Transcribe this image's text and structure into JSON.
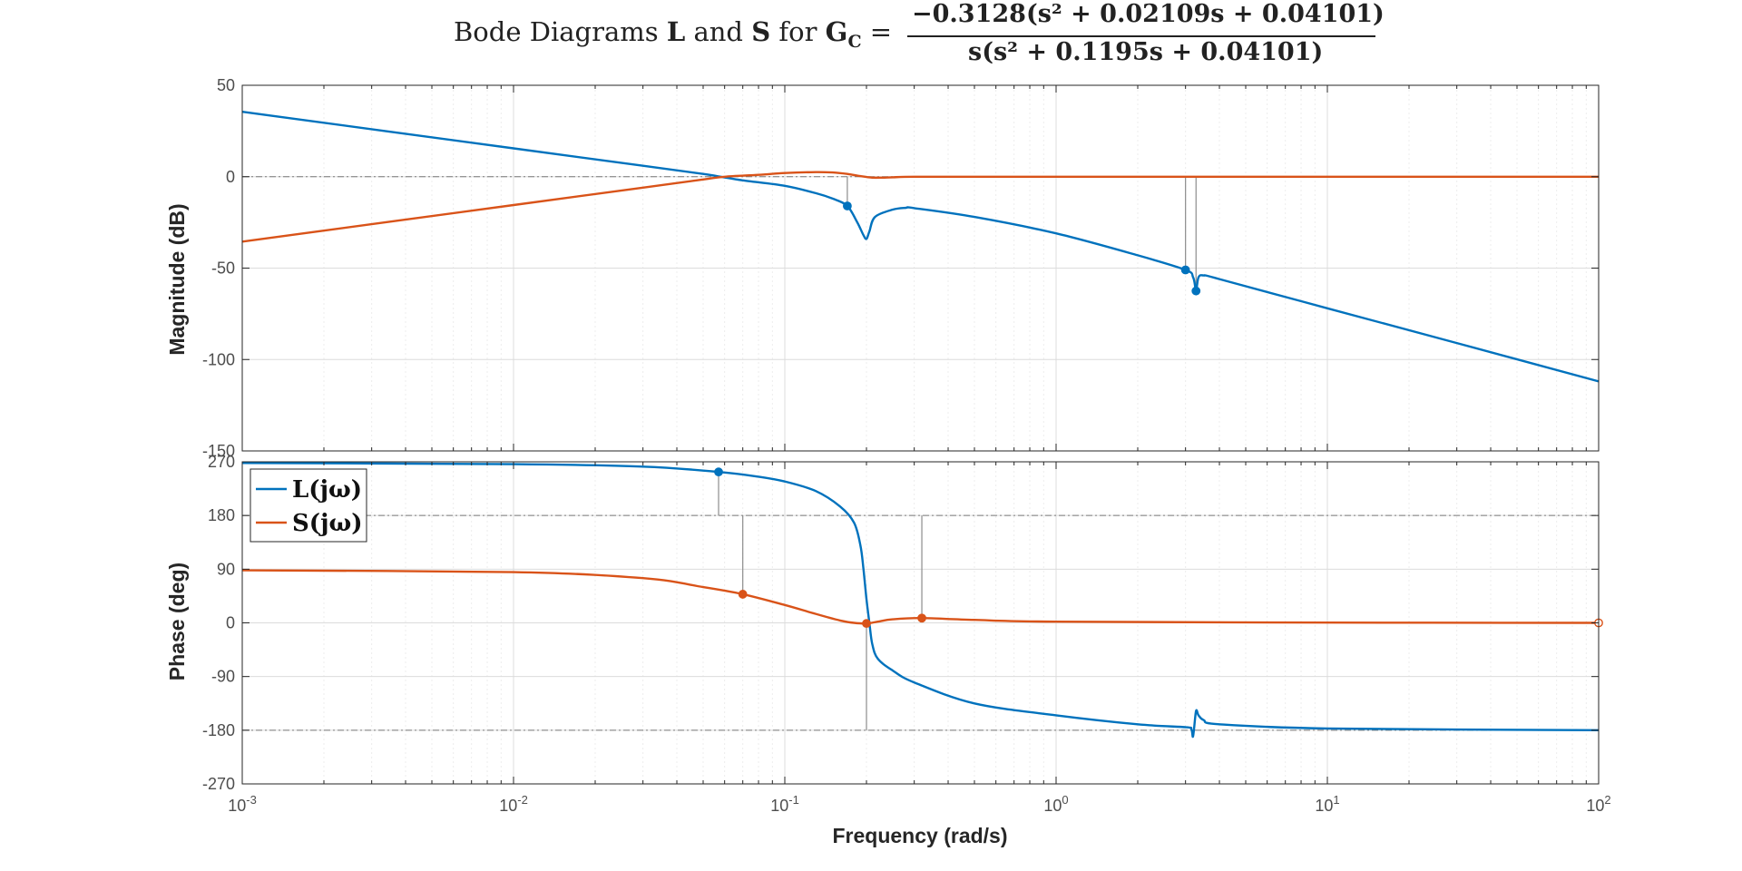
{
  "title": {
    "prefix": "Bode Diagrams",
    "L": "L",
    "and": "and",
    "S": "S",
    "for": "for",
    "G": "G",
    "Gsub": "C",
    "equals": "=",
    "numerator": "−0.3128(s² + 0.02109s + 0.04101)",
    "denominator": "s(s² + 0.1195s + 0.04101)"
  },
  "colors": {
    "L": "#0072BD",
    "S": "#D95319",
    "grid": "#e6e6e6",
    "axis": "#262626",
    "tick_text": "#4d4d4d",
    "ref": "#7a7a7a"
  },
  "chart_data": [
    {
      "panel": "magnitude",
      "type": "line",
      "xscale": "log",
      "xlim": [
        0.001,
        100
      ],
      "ylim": [
        -150,
        50
      ],
      "yticks": [
        -150,
        -100,
        -50,
        0,
        50
      ],
      "ylabel": "Magnitude (dB)",
      "grid": true,
      "series": [
        {
          "key": "L",
          "x": [
            0.001,
            0.01,
            0.03,
            0.05,
            0.058,
            0.07,
            0.1,
            0.13,
            0.15,
            0.17,
            0.185,
            0.195,
            0.2,
            0.205,
            0.215,
            0.25,
            0.28,
            0.3,
            0.5,
            1,
            2,
            3,
            3.2,
            3.28,
            3.35,
            3.5,
            4,
            10,
            30,
            100
          ],
          "y": [
            35.5,
            15.5,
            6,
            1.5,
            0,
            -2,
            -5,
            -9,
            -12,
            -16,
            -25,
            -32,
            -34,
            -30,
            -22,
            -18,
            -17,
            -17.2,
            -22,
            -31,
            -43,
            -51,
            -55,
            -62,
            -55,
            -54,
            -56,
            -72,
            -91,
            -112
          ]
        },
        {
          "key": "S",
          "x": [
            0.001,
            0.01,
            0.03,
            0.05,
            0.06,
            0.08,
            0.1,
            0.13,
            0.15,
            0.17,
            0.19,
            0.21,
            0.23,
            0.25,
            0.3,
            0.5,
            1,
            10,
            100
          ],
          "y": [
            -35.5,
            -15.5,
            -6,
            -1.5,
            0,
            1,
            2,
            2.5,
            2.3,
            1.5,
            0.3,
            -0.5,
            -0.5,
            -0.3,
            0,
            0,
            0,
            0,
            0
          ]
        }
      ],
      "markers": [
        {
          "series": "L",
          "x": 0.17,
          "y": -16
        },
        {
          "series": "L",
          "x": 3.0,
          "y": -51
        },
        {
          "series": "L",
          "x": 3.28,
          "y": -62.5
        }
      ],
      "drop_lines": [
        {
          "x": 0.17,
          "y_from": 0,
          "y_to": -16
        },
        {
          "x": 3.0,
          "y_from": 0,
          "y_to": -51
        },
        {
          "x": 3.28,
          "y_from": 0,
          "y_to": -62.5
        }
      ],
      "reference_lines": [
        0
      ]
    },
    {
      "panel": "phase",
      "type": "line",
      "xscale": "log",
      "xlim": [
        0.001,
        100
      ],
      "ylim": [
        -270,
        270
      ],
      "yticks": [
        -270,
        -180,
        -90,
        0,
        90,
        180,
        270
      ],
      "ylabel": "Phase (deg)",
      "xlabel": "Frequency  (rad/s)",
      "xtick_exponents": [
        -3,
        -2,
        -1,
        0,
        1,
        2
      ],
      "grid": true,
      "series": [
        {
          "key": "L",
          "x": [
            0.001,
            0.01,
            0.03,
            0.057,
            0.08,
            0.1,
            0.13,
            0.16,
            0.18,
            0.19,
            0.195,
            0.2,
            0.205,
            0.21,
            0.22,
            0.25,
            0.3,
            0.5,
            1,
            2,
            3,
            3.15,
            3.2,
            3.28,
            3.35,
            3.5,
            4,
            10,
            100
          ],
          "y": [
            268,
            266,
            262,
            253,
            245,
            237,
            221,
            195,
            168,
            130,
            90,
            40,
            0,
            -35,
            -60,
            -80,
            -100,
            -135,
            -155,
            -170,
            -175,
            -178,
            -190,
            -148,
            -155,
            -163,
            -170,
            -177,
            -180
          ]
        },
        {
          "key": "S",
          "x": [
            0.001,
            0.01,
            0.03,
            0.05,
            0.07,
            0.1,
            0.13,
            0.16,
            0.18,
            0.2,
            0.22,
            0.25,
            0.32,
            0.5,
            1,
            10,
            100
          ],
          "y": [
            88,
            85,
            75,
            60,
            48,
            30,
            15,
            4,
            0,
            -1,
            2,
            6,
            8,
            5,
            2,
            0.5,
            0
          ]
        }
      ],
      "markers": [
        {
          "series": "L",
          "x": 0.057,
          "y": 253
        },
        {
          "series": "S",
          "x": 0.07,
          "y": 48
        },
        {
          "series": "S",
          "x": 0.2,
          "y": -1
        },
        {
          "series": "S",
          "x": 0.32,
          "y": 8
        },
        {
          "series": "S",
          "x": 100,
          "y": 0,
          "open": true
        }
      ],
      "drop_lines": [
        {
          "x": 0.057,
          "y_from": 180,
          "y_to": 253
        },
        {
          "x": 0.07,
          "y_from": 180,
          "y_to": 48
        },
        {
          "x": 0.2,
          "y_from": -180,
          "y_to": -1
        },
        {
          "x": 0.32,
          "y_from": 180,
          "y_to": 8
        }
      ],
      "reference_lines": [
        180,
        -180
      ]
    }
  ],
  "legend": {
    "placement": "top-left",
    "entries": [
      {
        "series": "L",
        "label": "L(jω)"
      },
      {
        "series": "S",
        "label": "S(jω)"
      }
    ]
  }
}
